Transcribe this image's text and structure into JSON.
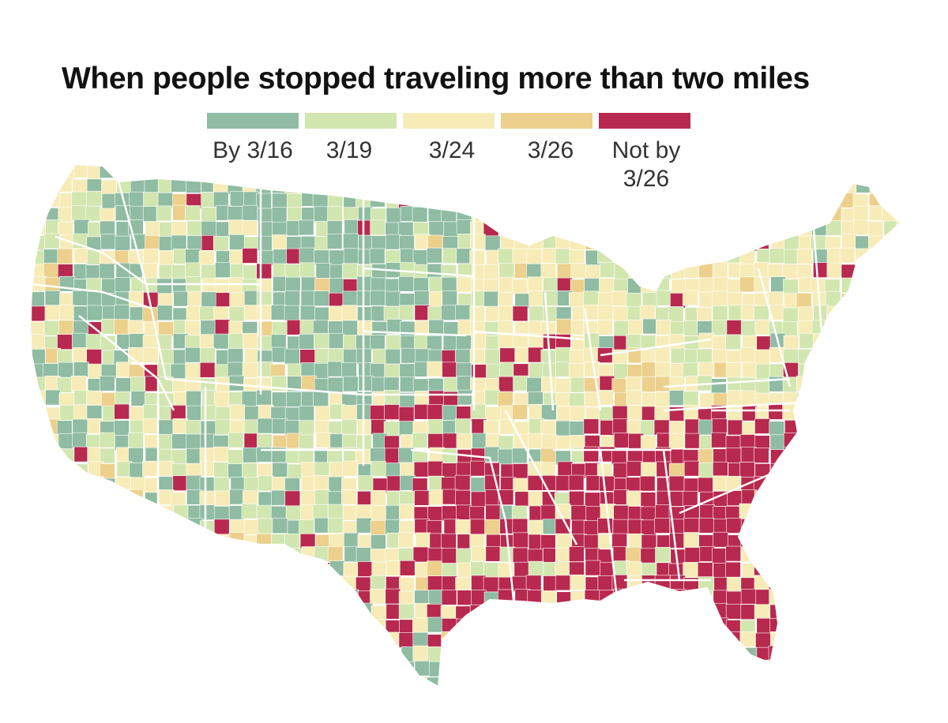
{
  "title": "When people stopped traveling more than two miles",
  "legend": {
    "items": [
      {
        "label": "By 3/16",
        "color": "#8fbca3"
      },
      {
        "label": "3/19",
        "color": "#d2e6b0"
      },
      {
        "label": "3/24",
        "color": "#f7ecb8"
      },
      {
        "label": "3/26",
        "color": "#ecd08c"
      },
      {
        "label": "Not by\n3/26",
        "color": "#b8294f"
      }
    ]
  },
  "colors": {
    "background": "#ffffff",
    "state_border": "#ffffff",
    "by_3_16": "#8fbca3",
    "by_3_19": "#d2e6b0",
    "by_3_24": "#f7ecb8",
    "by_3_26": "#ecd08c",
    "not_by_3_26": "#b8294f"
  },
  "map": {
    "type": "choropleth",
    "region": "contiguous United States, by county",
    "predominant_category_by_region": {
      "northwest_and_west": "mixed By 3/16 and 3/19 with patches of 3/24",
      "plains": "mostly By 3/16 with scattered Not by 3/26",
      "midwest_and_northeast": "mostly 3/24 and 3/19 with some 3/26",
      "south_and_southeast": "mostly Not by 3/26",
      "southwest_texas": "mixed By 3/16, 3/24 and Not by 3/26"
    }
  }
}
